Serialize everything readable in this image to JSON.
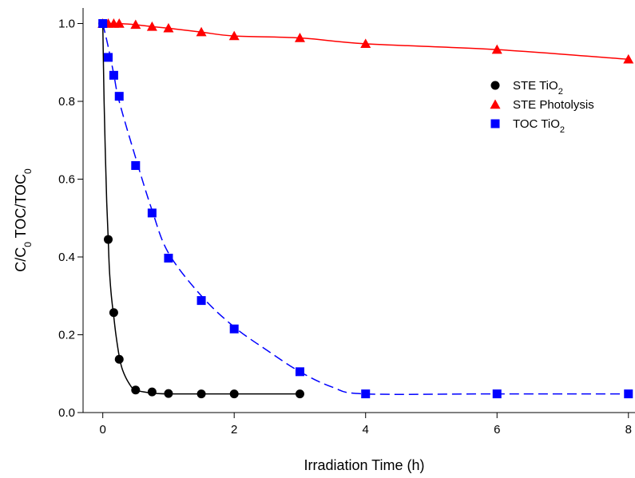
{
  "chart_data": {
    "type": "scatter",
    "xlabel": "Irradiation Time (h)",
    "ylabel": "C/C0 TOC/TOC0",
    "xlim": [
      -0.3,
      8.1
    ],
    "ylim": [
      0,
      1.04
    ],
    "xticks": [
      0,
      2,
      4,
      6,
      8
    ],
    "yticks": [
      0.0,
      0.2,
      0.4,
      0.6,
      0.8,
      1.0
    ],
    "xtick_labels": [
      "0",
      "2",
      "4",
      "6",
      "8"
    ],
    "ytick_labels": [
      "0.0",
      "0.2",
      "0.4",
      "0.6",
      "0.8",
      "1.0"
    ],
    "grid": false,
    "legend_position": "top-right",
    "series": [
      {
        "name": "STE TiO2",
        "marker": "circle",
        "color": "#000000",
        "line_style": "solid",
        "x": [
          0,
          0.083,
          0.167,
          0.25,
          0.5,
          0.75,
          1,
          1.5,
          2,
          3
        ],
        "y": [
          1.0,
          0.445,
          0.257,
          0.137,
          0.058,
          0.053,
          0.049,
          0.048,
          0.048,
          0.048
        ],
        "fit_x": [
          0,
          0.02,
          0.04,
          0.06,
          0.083,
          0.1,
          0.125,
          0.15,
          0.167,
          0.2,
          0.25,
          0.3,
          0.4,
          0.5,
          0.75,
          1,
          1.5,
          2,
          3
        ],
        "fit_y": [
          1.0,
          0.8,
          0.66,
          0.54,
          0.445,
          0.37,
          0.31,
          0.27,
          0.247,
          0.2,
          0.145,
          0.11,
          0.075,
          0.058,
          0.05,
          0.048,
          0.048,
          0.048,
          0.048
        ]
      },
      {
        "name": "STE Photolysis",
        "marker": "triangle",
        "color": "#ff0000",
        "line_style": "solid",
        "x": [
          0,
          0.083,
          0.167,
          0.25,
          0.5,
          0.75,
          1,
          1.5,
          2,
          3,
          4,
          6,
          8
        ],
        "y": [
          1.0,
          1.0,
          1.0,
          1.0,
          0.997,
          0.992,
          0.988,
          0.978,
          0.968,
          0.963,
          0.948,
          0.933,
          0.908
        ],
        "fit_x": [
          0,
          0.083,
          0.167,
          0.25,
          0.5,
          0.75,
          1,
          1.5,
          2,
          3,
          4,
          6,
          8
        ],
        "fit_y": [
          1.0,
          1.0,
          1.0,
          1.0,
          0.997,
          0.992,
          0.988,
          0.978,
          0.968,
          0.963,
          0.948,
          0.933,
          0.908
        ]
      },
      {
        "name": "TOC TiO2",
        "marker": "square",
        "color": "#0000ff",
        "line_style": "dashed",
        "x": [
          0,
          0.083,
          0.167,
          0.25,
          0.5,
          0.75,
          1,
          1.5,
          2,
          3,
          4,
          6,
          8
        ],
        "y": [
          1.0,
          0.913,
          0.867,
          0.813,
          0.635,
          0.513,
          0.397,
          0.288,
          0.215,
          0.105,
          0.048,
          0.048,
          0.048
        ],
        "fit_x": [
          0,
          0.083,
          0.167,
          0.25,
          0.5,
          0.75,
          1,
          1.5,
          2,
          2.5,
          3,
          3.5,
          4,
          6,
          8
        ],
        "fit_y": [
          1.0,
          0.94,
          0.87,
          0.8,
          0.655,
          0.52,
          0.41,
          0.3,
          0.22,
          0.16,
          0.105,
          0.065,
          0.048,
          0.048,
          0.048
        ]
      }
    ]
  },
  "labels": {
    "y_axis_main": "C/C",
    "y_axis_sub1": "0",
    "y_axis_mid": " TOC/TOC",
    "y_axis_sub2": "0",
    "x_axis": "Irradiation Time (h)"
  },
  "legend": [
    {
      "text": "STE TiO",
      "sub": "2",
      "marker": "circle",
      "color": "#000000"
    },
    {
      "text": "STE Photolysis",
      "sub": "",
      "marker": "triangle",
      "color": "#ff0000"
    },
    {
      "text": "TOC TiO",
      "sub": "2",
      "marker": "square",
      "color": "#0000ff"
    }
  ]
}
